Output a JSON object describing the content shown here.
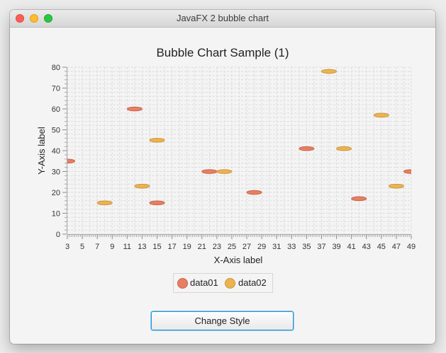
{
  "window": {
    "title": "JavaFX 2 bubble chart"
  },
  "chart_data": {
    "type": "scatter",
    "title": "Bubble Chart Sample (1)",
    "xlabel": "X-Axis label",
    "ylabel": "Y-Axis label",
    "xlim": [
      3,
      49
    ],
    "ylim": [
      0,
      80
    ],
    "x_ticks": [
      3,
      5,
      7,
      9,
      11,
      13,
      15,
      17,
      19,
      21,
      23,
      25,
      27,
      29,
      31,
      33,
      35,
      37,
      39,
      41,
      43,
      45,
      47,
      49
    ],
    "y_ticks": [
      0,
      10,
      20,
      30,
      40,
      50,
      60,
      70,
      80
    ],
    "grid": true,
    "legend": "bottom-center",
    "series": [
      {
        "name": "data01",
        "color": "#e87f62",
        "points": [
          {
            "x": 3,
            "y": 35
          },
          {
            "x": 12,
            "y": 60
          },
          {
            "x": 15,
            "y": 15
          },
          {
            "x": 22,
            "y": 30
          },
          {
            "x": 28,
            "y": 20
          },
          {
            "x": 35,
            "y": 41
          },
          {
            "x": 42,
            "y": 17
          },
          {
            "x": 49,
            "y": 30
          }
        ]
      },
      {
        "name": "data02",
        "color": "#ebb451",
        "points": [
          {
            "x": 8,
            "y": 15
          },
          {
            "x": 13,
            "y": 23
          },
          {
            "x": 15,
            "y": 45
          },
          {
            "x": 24,
            "y": 30
          },
          {
            "x": 38,
            "y": 78
          },
          {
            "x": 40,
            "y": 41
          },
          {
            "x": 45,
            "y": 57
          },
          {
            "x": 47,
            "y": 23
          }
        ]
      }
    ]
  },
  "controls": {
    "change_style_label": "Change Style"
  }
}
